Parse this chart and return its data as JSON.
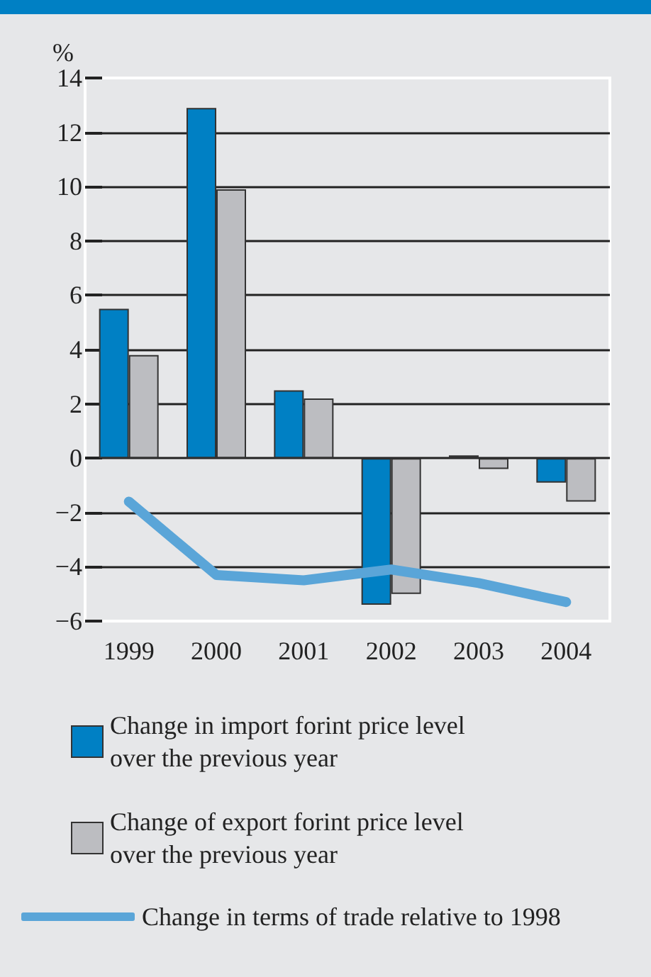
{
  "chart_data": {
    "type": "bar",
    "ylabel": "%",
    "categories": [
      "1999",
      "2000",
      "2001",
      "2002",
      "2003",
      "2004"
    ],
    "series": [
      {
        "name": "Change in import forint price level over the previous year",
        "color": "#0080c4",
        "values": [
          5.5,
          12.9,
          2.5,
          -5.4,
          0.1,
          -0.9
        ]
      },
      {
        "name": "Change of export forint price level over the previous year",
        "color": "#bcbdc1",
        "values": [
          3.8,
          9.9,
          2.2,
          -5.0,
          -0.4,
          -1.6
        ]
      },
      {
        "name": "Change in terms of trade relative to 1998",
        "type": "line",
        "color": "#5aa5d8",
        "values": [
          -1.6,
          -4.3,
          -4.5,
          -4.1,
          -4.6,
          -5.3
        ]
      }
    ],
    "ylim": [
      -6,
      14
    ],
    "yticks": [
      {
        "value": -6,
        "label": "−6"
      },
      {
        "value": -4,
        "label": "−4"
      },
      {
        "value": -2,
        "label": "−2"
      },
      0,
      2,
      4,
      6,
      8,
      10,
      12,
      14
    ],
    "grid": "y",
    "legend": "bottom"
  }
}
